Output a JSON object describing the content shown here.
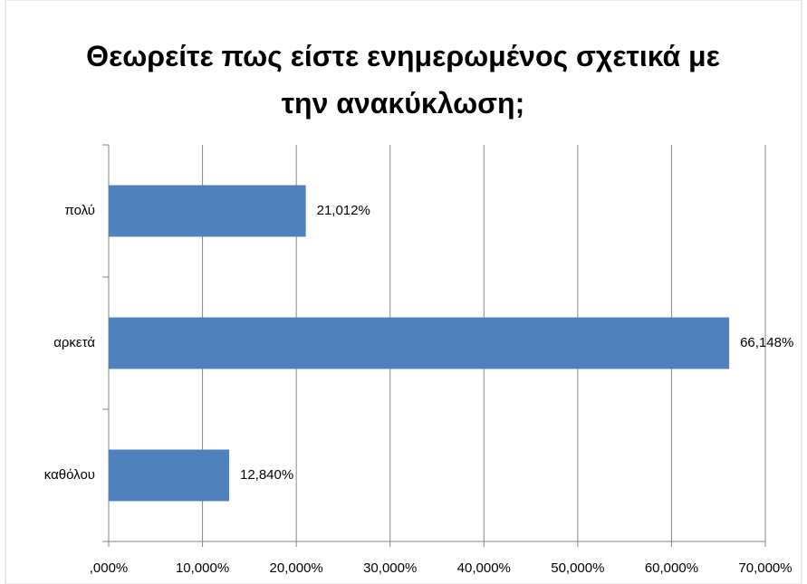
{
  "chart_data": {
    "type": "bar",
    "orientation": "horizontal",
    "title": "Θεωρείτε πως είστε ενημερωμένος σχετικά με την ανακύκλωση;",
    "categories": [
      "πολύ",
      "αρκετά",
      "καθόλου"
    ],
    "values": [
      21.012,
      66.148,
      12.84
    ],
    "value_labels": [
      "21,012%",
      "66,148%",
      "12,840%"
    ],
    "color": "#4f81bd",
    "xlim": [
      0,
      70
    ],
    "xticks": [
      {
        "value": 0,
        "label": ",000%"
      },
      {
        "value": 10,
        "label": "10,000%"
      },
      {
        "value": 20,
        "label": "20,000%"
      },
      {
        "value": 30,
        "label": "30,000%"
      },
      {
        "value": 40,
        "label": "40,000%"
      },
      {
        "value": 50,
        "label": "50,000%"
      },
      {
        "value": 60,
        "label": "60,000%"
      },
      {
        "value": 70,
        "label": "70,000%"
      }
    ],
    "grid": true
  }
}
